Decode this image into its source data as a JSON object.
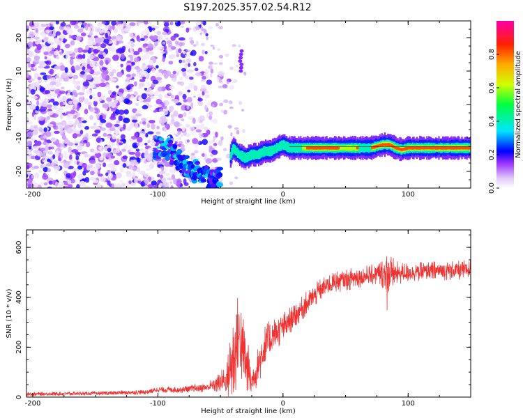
{
  "title": "S197.2025.357.02.54.R12",
  "chart_data": [
    {
      "type": "heatmap",
      "xlabel": "Height of straight line (km)",
      "ylabel": "Frequency (Hz)",
      "xlim": [
        -205,
        150
      ],
      "ylim": [
        -25,
        25
      ],
      "x_ticks": [
        "-200",
        "-100",
        "0",
        "100"
      ],
      "y_ticks": [
        "20",
        "10",
        "0",
        "-10",
        "-20"
      ],
      "colorbar": {
        "label": "Normalized spectral amplitude",
        "range": [
          0,
          1
        ],
        "ticks": [
          "0.0",
          "0.2",
          "0.4",
          "0.6",
          "0.8"
        ]
      },
      "ridge": {
        "x": [
          -100,
          -95,
          -90,
          -85,
          -80,
          -75,
          -70,
          -65,
          -60,
          -55,
          -45,
          -40,
          -35,
          -30,
          -25,
          -20,
          -15,
          -10,
          -5,
          0,
          5,
          10,
          20,
          30,
          40,
          50,
          60,
          70,
          75,
          80,
          85,
          90,
          95,
          100,
          110,
          120,
          130,
          140,
          150
        ],
        "y": [
          -13,
          -12,
          -14,
          -16,
          -18,
          -19,
          -20,
          -21,
          -22,
          -23,
          -19,
          -13,
          -15,
          -16,
          -15,
          -15,
          -14,
          -14,
          -13,
          -12,
          -13,
          -13,
          -13,
          -13,
          -13,
          -13,
          -13,
          -13,
          -12.5,
          -12,
          -12,
          -13,
          -13.5,
          -13,
          -13,
          -13,
          -13,
          -13,
          -13
        ]
      }
    },
    {
      "type": "line",
      "xlabel": "Height of straight line (km)",
      "ylabel": "SNR (10 * v/v)",
      "xlim": [
        -205,
        150
      ],
      "ylim": [
        0,
        670
      ],
      "x_ticks": [
        "-200",
        "-100",
        "0",
        "100"
      ],
      "y_ticks": [
        "0",
        "200",
        "400",
        "600"
      ],
      "color": "#ee3333",
      "envelope": {
        "x": [
          -205,
          -150,
          -110,
          -100,
          -80,
          -60,
          -45,
          -40,
          -35,
          -30,
          -25,
          -20,
          -15,
          -10,
          -5,
          0,
          10,
          20,
          30,
          40,
          50,
          60,
          70,
          80,
          85,
          90,
          100,
          120,
          150
        ],
        "mean": [
          12,
          15,
          20,
          30,
          30,
          40,
          70,
          150,
          250,
          140,
          60,
          120,
          200,
          230,
          260,
          280,
          330,
          380,
          430,
          460,
          470,
          480,
          490,
          495,
          500,
          495,
          500,
          505,
          510
        ],
        "amp": [
          8,
          8,
          10,
          12,
          15,
          20,
          60,
          200,
          180,
          150,
          60,
          80,
          90,
          80,
          70,
          60,
          50,
          50,
          45,
          45,
          45,
          45,
          40,
          60,
          90,
          50,
          40,
          40,
          40
        ]
      }
    }
  ]
}
